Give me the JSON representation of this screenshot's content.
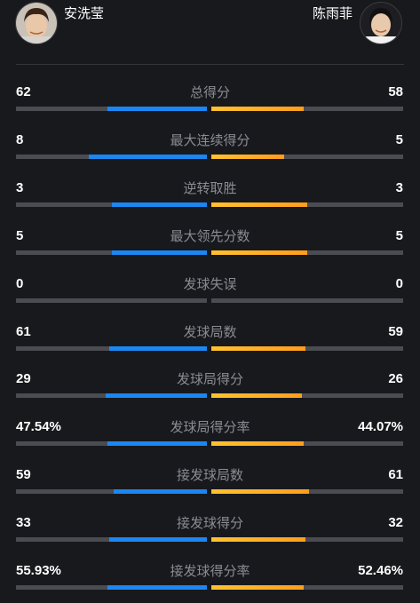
{
  "players": {
    "left": {
      "name": "安洗莹"
    },
    "right": {
      "name": "陈雨菲"
    }
  },
  "colors": {
    "background": "#18191d",
    "left_bar": "#1b87f3",
    "right_bar": "#ffb020",
    "track": "#4a4c52"
  },
  "stats": [
    {
      "label": "总得分",
      "left": "62",
      "right": "58",
      "left_share": 0.52,
      "right_share": 0.48
    },
    {
      "label": "最大连续得分",
      "left": "8",
      "right": "5",
      "left_share": 0.62,
      "right_share": 0.38
    },
    {
      "label": "逆转取胜",
      "left": "3",
      "right": "3",
      "left_share": 0.5,
      "right_share": 0.5
    },
    {
      "label": "最大领先分数",
      "left": "5",
      "right": "5",
      "left_share": 0.5,
      "right_share": 0.5
    },
    {
      "label": "发球失误",
      "left": "0",
      "right": "0",
      "left_share": 0,
      "right_share": 0
    },
    {
      "label": "发球局数",
      "left": "61",
      "right": "59",
      "left_share": 0.51,
      "right_share": 0.49
    },
    {
      "label": "发球局得分",
      "left": "29",
      "right": "26",
      "left_share": 0.53,
      "right_share": 0.47
    },
    {
      "label": "发球局得分率",
      "left": "47.54%",
      "right": "44.07%",
      "left_share": 0.52,
      "right_share": 0.48
    },
    {
      "label": "接发球局数",
      "left": "59",
      "right": "61",
      "left_share": 0.49,
      "right_share": 0.51
    },
    {
      "label": "接发球得分",
      "left": "33",
      "right": "32",
      "left_share": 0.51,
      "right_share": 0.49
    },
    {
      "label": "接发球得分率",
      "left": "55.93%",
      "right": "52.46%",
      "left_share": 0.52,
      "right_share": 0.48
    }
  ]
}
